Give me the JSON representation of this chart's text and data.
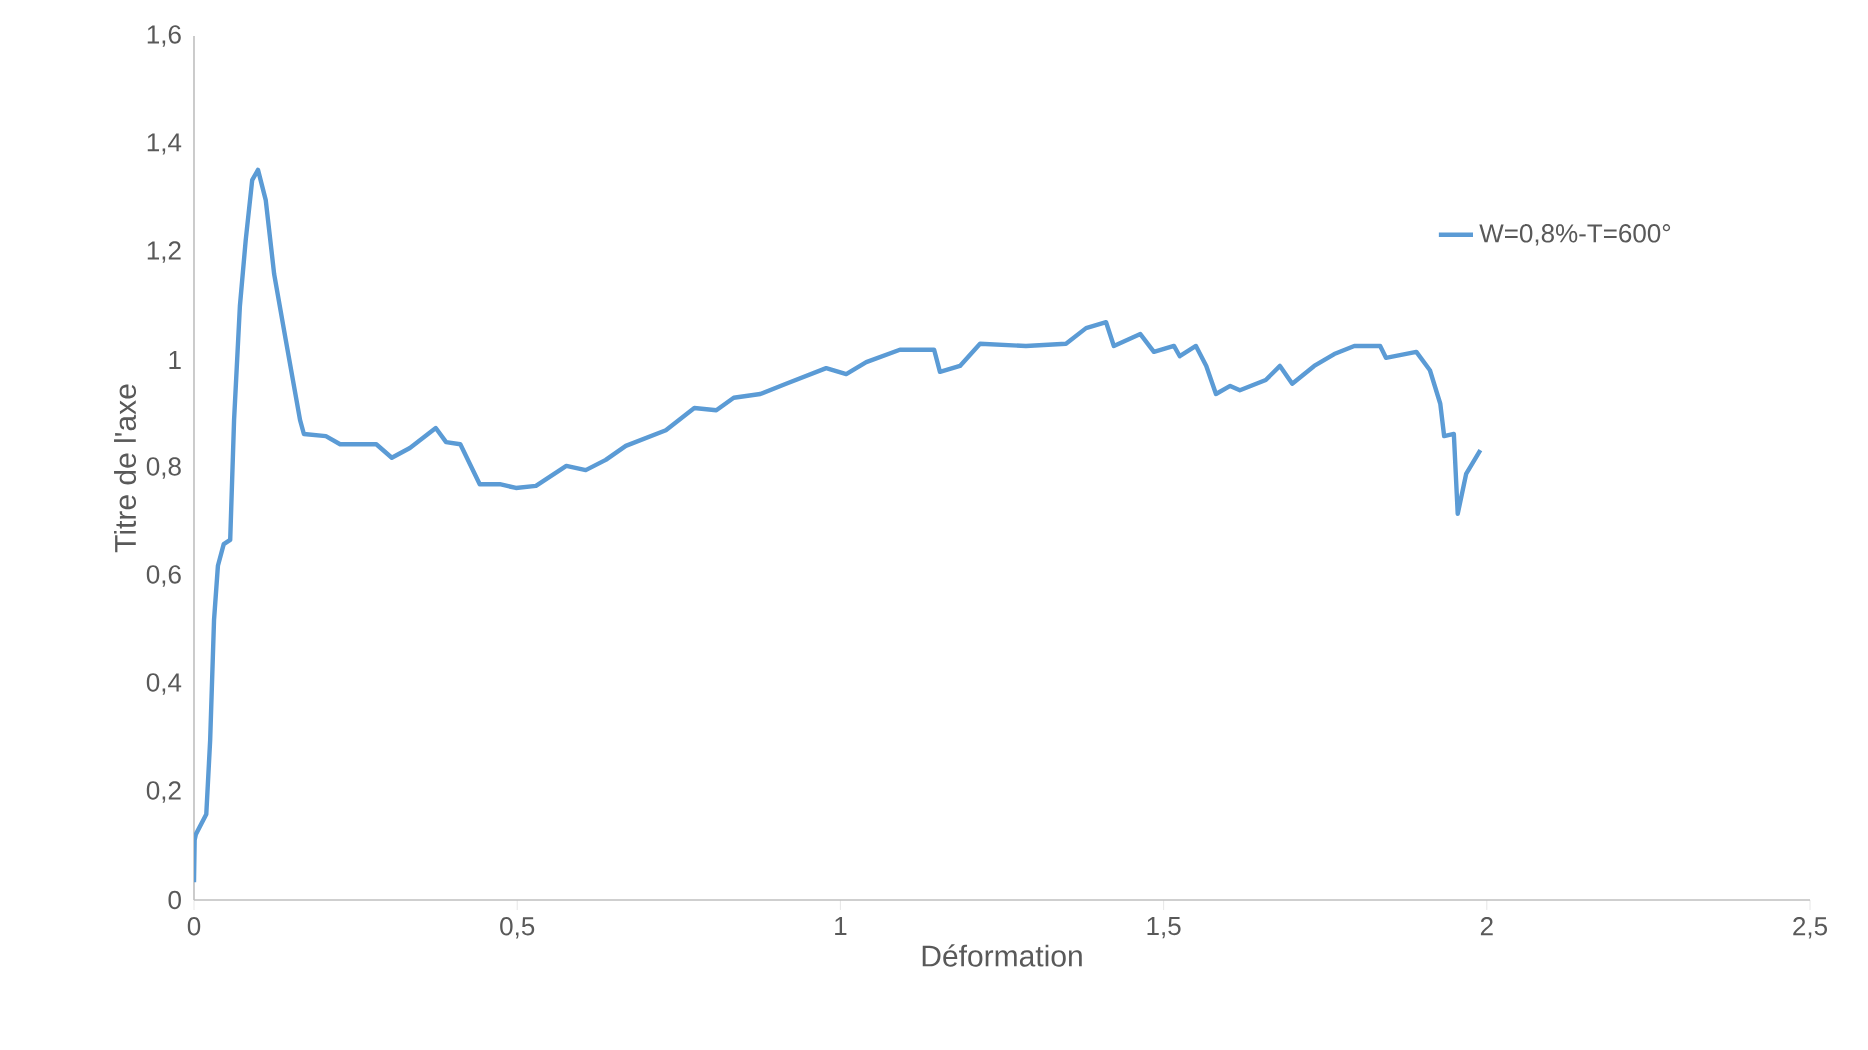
{
  "chart_data": {
    "type": "line",
    "xlabel": "Déformation",
    "ylabel": "Titre de l'axe",
    "xlim": [
      0,
      2.5
    ],
    "ylim": [
      0,
      1.6
    ],
    "xticks": [
      0,
      {
        "value": 0.5,
        "label": "0,5"
      },
      1,
      {
        "value": 1.5,
        "label": "1,5"
      },
      2,
      {
        "value": 2.5,
        "label": "2,5"
      }
    ],
    "yticks": [
      0,
      {
        "value": 0.2,
        "label": "0,2"
      },
      {
        "value": 0.4,
        "label": "0,4"
      },
      {
        "value": 0.6,
        "label": "0,6"
      },
      {
        "value": 0.8,
        "label": "0,8"
      },
      1,
      {
        "value": 1.2,
        "label": "1,2"
      },
      {
        "value": 1.4,
        "label": "1,4"
      },
      {
        "value": 1.6,
        "label": "1,6"
      }
    ],
    "legend": "right",
    "series": [
      {
        "name": "W=0,8%-T=600°",
        "color": "#5b9bd5",
        "x": [
          0,
          0.001,
          0.003,
          0.019,
          0.025,
          0.031,
          0.037,
          0.046,
          0.056,
          0.062,
          0.071,
          0.08,
          0.09,
          0.099,
          0.111,
          0.124,
          0.142,
          0.164,
          0.17,
          0.204,
          0.226,
          0.282,
          0.306,
          0.334,
          0.374,
          0.39,
          0.412,
          0.442,
          0.473,
          0.498,
          0.529,
          0.576,
          0.606,
          0.637,
          0.668,
          0.73,
          0.774,
          0.808,
          0.835,
          0.876,
          0.916,
          0.978,
          1.009,
          1.04,
          1.092,
          1.145,
          1.154,
          1.185,
          1.216,
          1.287,
          1.349,
          1.38,
          1.411,
          1.423,
          1.464,
          1.485,
          1.516,
          1.525,
          1.55,
          1.566,
          1.581,
          1.603,
          1.618,
          1.658,
          1.68,
          1.699,
          1.733,
          1.764,
          1.795,
          1.835,
          1.844,
          1.891,
          1.912,
          1.928,
          1.934,
          1.949,
          1.955,
          1.968,
          1.99
        ],
        "values": [
          0.033,
          0.111,
          0.122,
          0.159,
          0.296,
          0.519,
          0.619,
          0.659,
          0.667,
          0.889,
          1.1,
          1.222,
          1.333,
          1.352,
          1.296,
          1.159,
          1.037,
          0.889,
          0.863,
          0.859,
          0.844,
          0.844,
          0.819,
          0.837,
          0.874,
          0.848,
          0.844,
          0.77,
          0.77,
          0.763,
          0.767,
          0.804,
          0.796,
          0.815,
          0.841,
          0.87,
          0.911,
          0.907,
          0.93,
          0.937,
          0.956,
          0.985,
          0.974,
          0.996,
          1.019,
          1.019,
          0.978,
          0.989,
          1.03,
          1.026,
          1.03,
          1.059,
          1.07,
          1.026,
          1.048,
          1.015,
          1.026,
          1.007,
          1.026,
          0.989,
          0.937,
          0.952,
          0.944,
          0.963,
          0.989,
          0.956,
          0.989,
          1.011,
          1.026,
          1.026,
          1.004,
          1.015,
          0.981,
          0.919,
          0.859,
          0.863,
          0.715,
          0.789,
          0.833
        ]
      }
    ]
  }
}
